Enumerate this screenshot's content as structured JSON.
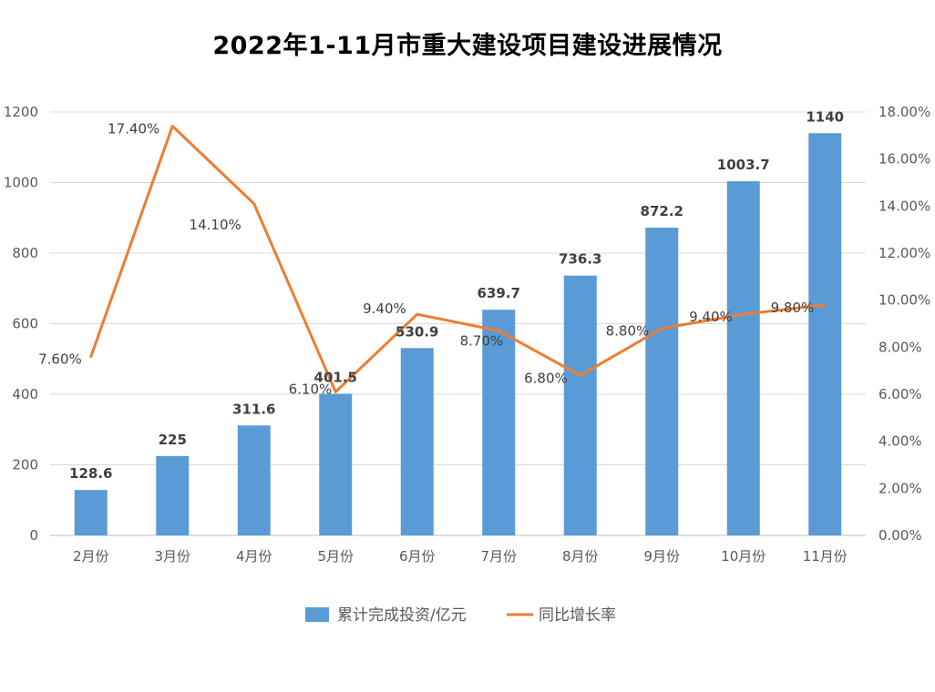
{
  "chart_data": {
    "type": "bar+line",
    "title": "2022年1-11月市重大建设项目建设进展情况",
    "categories": [
      "2月份",
      "3月份",
      "4月份",
      "5月份",
      "6月份",
      "7月份",
      "8月份",
      "9月份",
      "10月份",
      "11月份"
    ],
    "series": [
      {
        "name": "累计完成投资/亿元",
        "type": "bar",
        "axis": "left",
        "color": "#5B9BD5",
        "values": [
          128.6,
          225,
          311.6,
          401.5,
          530.9,
          639.7,
          736.3,
          872.2,
          1003.7,
          1140
        ],
        "labels": [
          "128.6",
          "225",
          "311.6",
          "401.5",
          "530.9",
          "639.7",
          "736.3",
          "872.2",
          "1003.7",
          "1140"
        ]
      },
      {
        "name": "同比增长率",
        "type": "line",
        "axis": "right",
        "color": "#ED7D31",
        "values": [
          7.6,
          17.4,
          14.1,
          6.1,
          9.4,
          8.7,
          6.8,
          8.8,
          9.4,
          9.8
        ],
        "labels": [
          "7.60%",
          "17.40%",
          "14.10%",
          "6.10%",
          "9.40%",
          "8.70%",
          "6.80%",
          "8.80%",
          "9.40%",
          "9.80%"
        ]
      }
    ],
    "y_left": {
      "min": 0,
      "max": 1200,
      "step": 200,
      "ticks": [
        "0",
        "200",
        "400",
        "600",
        "800",
        "1000",
        "1200"
      ]
    },
    "y_right": {
      "min": 0,
      "max": 18,
      "step": 2,
      "ticks": [
        "0.00%",
        "2.00%",
        "4.00%",
        "6.00%",
        "8.00%",
        "10.00%",
        "12.00%",
        "14.00%",
        "16.00%",
        "18.00%"
      ]
    },
    "grid": true,
    "legend_position": "bottom"
  }
}
